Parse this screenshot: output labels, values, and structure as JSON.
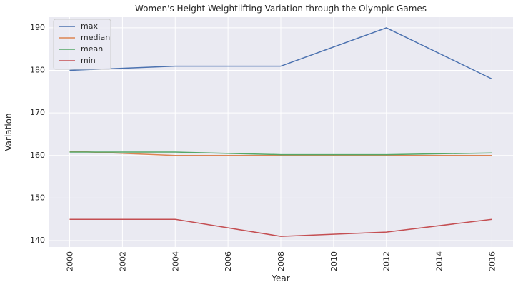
{
  "chart_data": {
    "type": "line",
    "title": "Women's Height Weightlifting Variation through the Olympic Games",
    "xlabel": "Year",
    "ylabel": "Variation",
    "x": [
      2000,
      2004,
      2008,
      2012,
      2016
    ],
    "xticks": [
      2000,
      2002,
      2004,
      2006,
      2008,
      2010,
      2012,
      2014,
      2016
    ],
    "yticks": [
      140,
      150,
      160,
      170,
      180,
      190
    ],
    "xlim": [
      1999.2,
      2016.8
    ],
    "ylim": [
      138.5,
      192.5
    ],
    "grid": true,
    "legend_position": "top-left",
    "series": [
      {
        "name": "max",
        "color": "#4c72b0",
        "values": [
          180,
          181,
          181,
          190,
          178
        ]
      },
      {
        "name": "median",
        "color": "#dd8452",
        "values": [
          161,
          160,
          160,
          160,
          160
        ]
      },
      {
        "name": "mean",
        "color": "#55a868",
        "values": [
          160.8,
          160.8,
          160.2,
          160.2,
          160.6
        ]
      },
      {
        "name": "min",
        "color": "#c44e52",
        "values": [
          145,
          145,
          141,
          142,
          145
        ]
      }
    ],
    "background_color": "#eaeaf2",
    "grid_color": "#ffffff"
  }
}
